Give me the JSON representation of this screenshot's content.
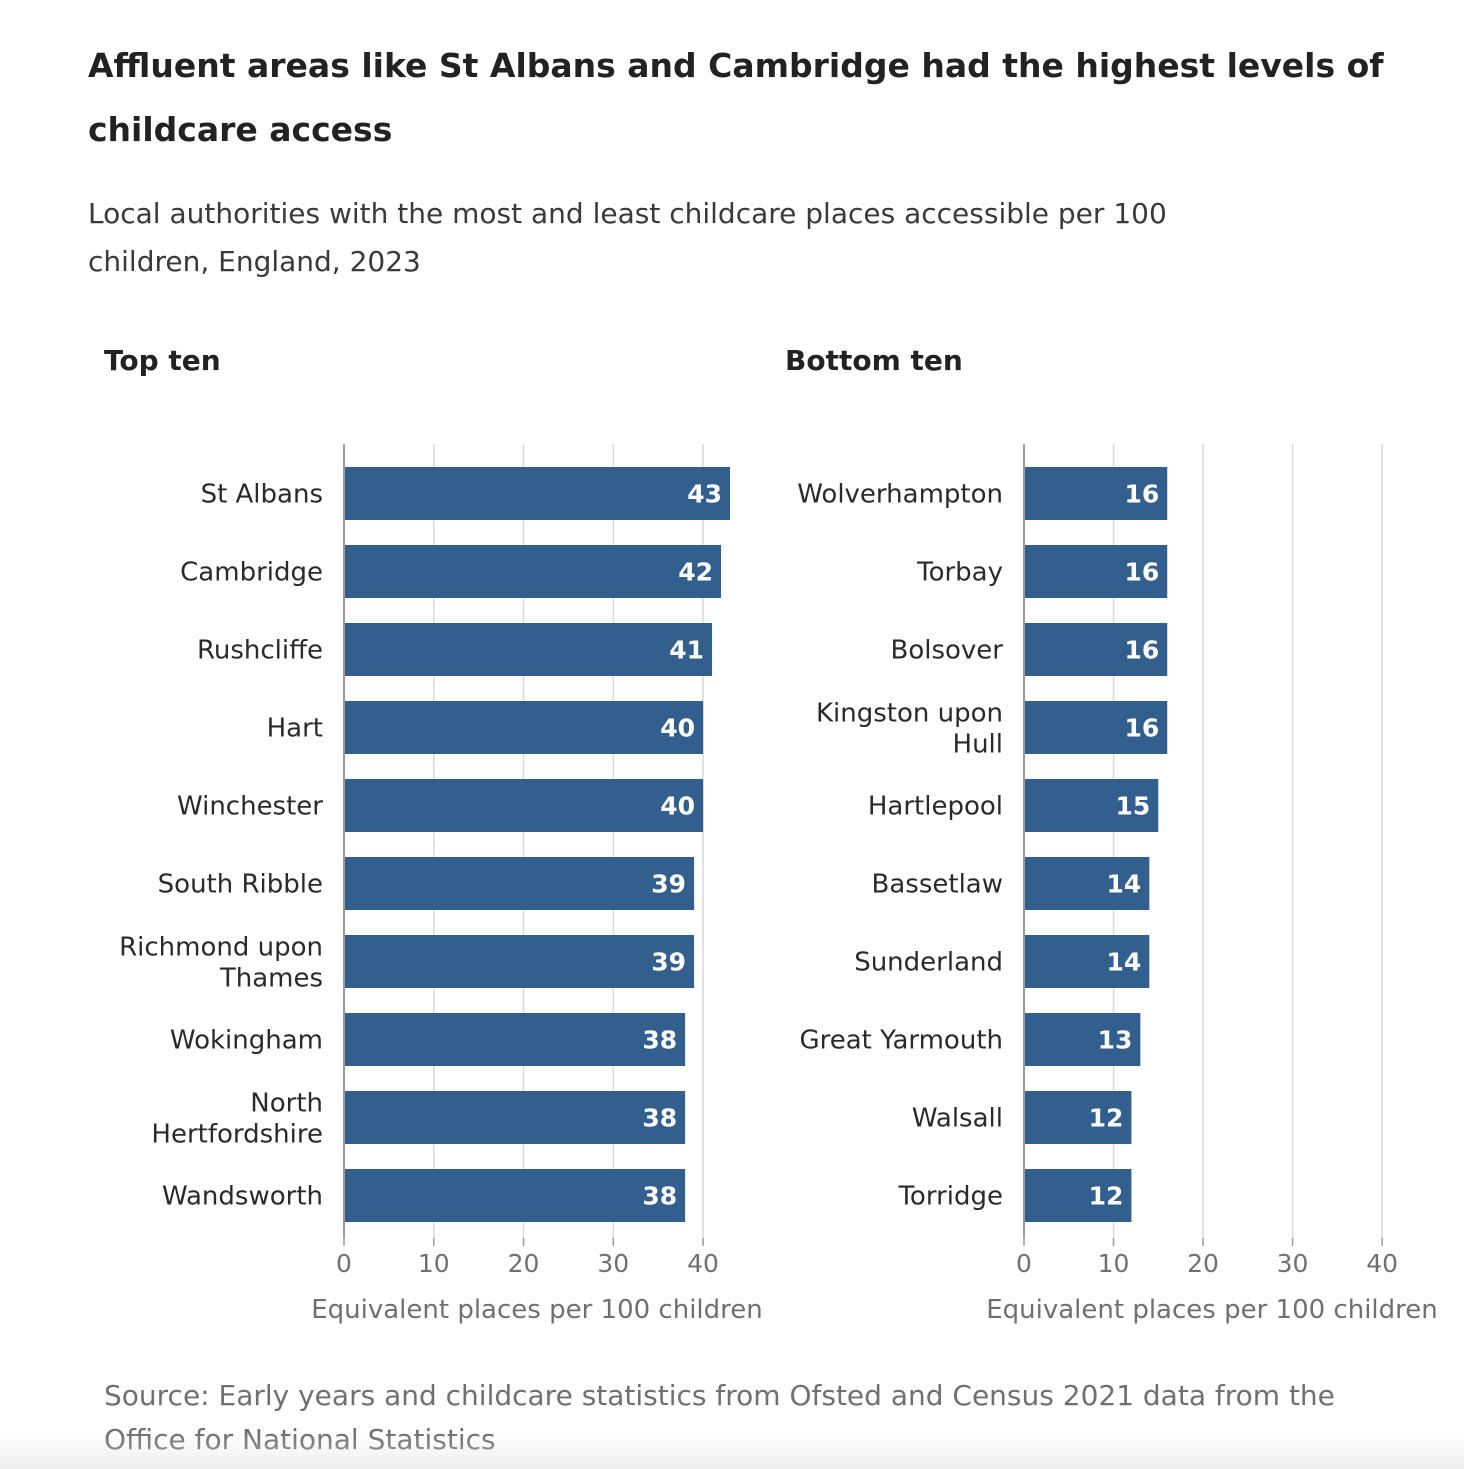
{
  "title": "Affluent areas like St Albans and Cambridge had the highest levels of childcare access",
  "subtitle": "Local authorities with the most and least childcare places accessible per 100 children, England, 2023",
  "source": "Source: Early years and childcare statistics from Ofsted and Census 2021 data from the Office for National Statistics",
  "colors": {
    "bar": "#335f8f",
    "grid": "#d9d9d9",
    "axis": "#9a9a9a"
  },
  "chart_data": [
    {
      "type": "bar",
      "orientation": "horizontal",
      "title": "Top ten",
      "categories": [
        [
          "St Albans"
        ],
        [
          "Cambridge"
        ],
        [
          "Rushcliffe"
        ],
        [
          "Hart"
        ],
        [
          "Winchester"
        ],
        [
          "South Ribble"
        ],
        [
          "Richmond upon",
          "Thames"
        ],
        [
          "Wokingham"
        ],
        [
          "North",
          "Hertfordshire"
        ],
        [
          "Wandsworth"
        ]
      ],
      "values": [
        43,
        42,
        41,
        40,
        40,
        39,
        39,
        38,
        38,
        38
      ],
      "value_labels": [
        "43",
        "42",
        "41",
        "40",
        "40",
        "39",
        "39",
        "38",
        "38",
        "38"
      ],
      "xlabel": "Equivalent places per 100 children",
      "xlim": [
        0,
        43
      ],
      "xticks": [
        0,
        10,
        20,
        30,
        40
      ],
      "grid": true
    },
    {
      "type": "bar",
      "orientation": "horizontal",
      "title": "Bottom ten",
      "categories": [
        [
          "Wolverhampton"
        ],
        [
          "Torbay"
        ],
        [
          "Bolsover"
        ],
        [
          "Kingston upon",
          "Hull"
        ],
        [
          "Hartlepool"
        ],
        [
          "Bassetlaw"
        ],
        [
          "Sunderland"
        ],
        [
          "Great Yarmouth"
        ],
        [
          "Walsall"
        ],
        [
          "Torridge"
        ]
      ],
      "values": [
        16,
        16,
        16,
        16,
        15,
        14,
        14,
        13,
        12,
        12
      ],
      "value_labels": [
        "16",
        "16",
        "16",
        "16",
        "15",
        "14",
        "14",
        "13",
        "12",
        "12"
      ],
      "xlabel": "Equivalent places per 100 children",
      "xlim": [
        0,
        42
      ],
      "xticks": [
        0,
        10,
        20,
        30,
        40
      ],
      "grid": true
    }
  ]
}
